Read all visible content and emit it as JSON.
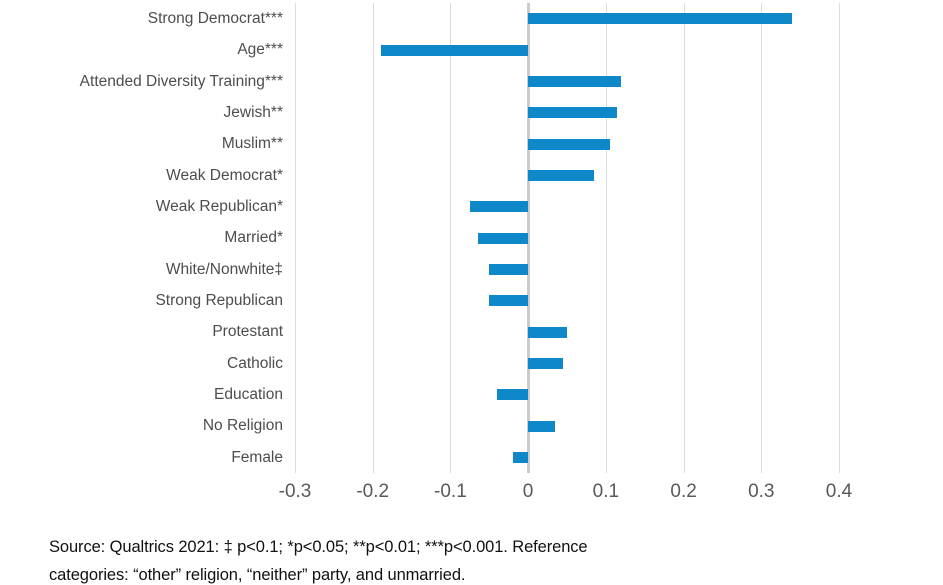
{
  "chart_data": {
    "type": "bar",
    "orientation": "horizontal",
    "title": "",
    "xlabel": "",
    "ylabel": "",
    "grid": true,
    "legend": false,
    "xlim": [
      -0.3,
      0.4
    ],
    "xticks": [
      -0.3,
      -0.2,
      -0.1,
      0,
      0.1,
      0.2,
      0.3,
      0.4
    ],
    "xtick_labels": [
      "-0.3",
      "-0.2",
      "-0.1",
      "0",
      "0.1",
      "0.2",
      "0.3",
      "0.4"
    ],
    "categories": [
      "Strong Democrat***",
      "Age***",
      "Attended Diversity Training***",
      "Jewish**",
      "Muslim**",
      "Weak Democrat*",
      "Weak Republican*",
      "Married*",
      "White/Nonwhite‡",
      "Strong Republican",
      "Protestant",
      "Catholic",
      "Education",
      "No Religion",
      "Female"
    ],
    "values": [
      0.34,
      -0.19,
      0.12,
      0.115,
      0.105,
      0.085,
      -0.075,
      -0.065,
      -0.05,
      -0.05,
      0.05,
      0.045,
      -0.04,
      0.035,
      -0.02
    ],
    "bar_color": "#0f88c9",
    "gridline_color": "#dcdcdc",
    "zero_line_color": "#cbcbcb",
    "category_label_color": "#4d4d4d",
    "tick_label_color": "#595959"
  },
  "source_note": {
    "line1": "Source: Qualtrics 2021: ‡ p<0.1; *p<0.05; **p<0.01; ***p<0.001. Reference",
    "line2": "categories: “other” religion, “neither” party, and unmarried."
  }
}
